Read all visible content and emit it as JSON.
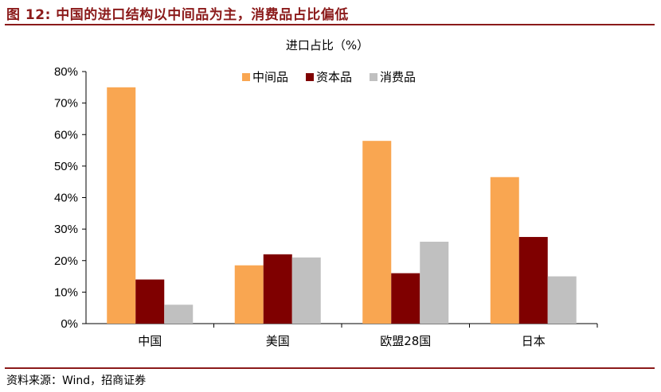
{
  "figure": {
    "title": "图 12:  中国的进口结构以中间品为主，消费品占比偏低",
    "source": "资料来源：Wind，招商证券"
  },
  "colors": {
    "accent": "#8b1a1a"
  },
  "chart_data": {
    "type": "bar",
    "title": "进口占比（%）",
    "categories": [
      "中国",
      "美国",
      "欧盟28国",
      "日本"
    ],
    "series": [
      {
        "name": "中间品",
        "color": "#f9a651",
        "values": [
          75,
          18.5,
          58,
          46.5
        ]
      },
      {
        "name": "资本品",
        "color": "#7f0000",
        "values": [
          14,
          22,
          16,
          27.5
        ]
      },
      {
        "name": "消费品",
        "color": "#c0c0c0",
        "values": [
          6,
          21,
          26,
          15
        ]
      }
    ],
    "ylim": [
      0,
      80
    ],
    "yticks": [
      "0%",
      "10%",
      "20%",
      "30%",
      "40%",
      "50%",
      "60%",
      "70%",
      "80%"
    ],
    "grid": false,
    "legend": "top-right"
  }
}
